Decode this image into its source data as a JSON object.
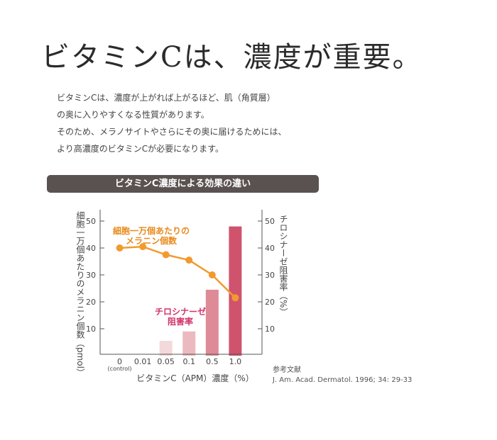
{
  "headline": "ビタミンCは、濃度が重要。",
  "paragraph_lines": [
    "ビタミンCは、濃度が上がれば上がるほど、肌（角質層）",
    "の奥に入りやすくなる性質があります。",
    "そのため、メラノサイトやさらにその奥に届けるためには、",
    "より高濃度のビタミンCが必要になります。"
  ],
  "chart_banner": "ビタミンC濃度による効果の違い",
  "reference": {
    "label": "参考文献",
    "citation": "J. Am. Acad. Dermatol. 1996; 34: 29-33"
  },
  "colors": {
    "line": "#f29a2e",
    "line_label": "#e88a1a",
    "bar_label": "#d2336b",
    "bars": [
      "#f3d9db",
      "#ebb9bf",
      "#de8b97",
      "#cf536d"
    ],
    "axis": "#555555",
    "banner": "#5a5250"
  },
  "chart_data": {
    "type": "bar+line",
    "categories": [
      "0",
      "0.01",
      "0.05",
      "0.1",
      "0.5",
      "1.0"
    ],
    "category_sublabel": {
      "index": 0,
      "text": "(control)"
    },
    "xlabel": "ビタミンC（APM）濃度（%）",
    "ylabel_left": "細胞一万個あたりのメラニン個数（pmol）",
    "ylabel_right": "チロシナーゼ阻害率（%）",
    "ylim": [
      0,
      55
    ],
    "yticks": [
      10,
      20,
      30,
      40,
      50
    ],
    "series": [
      {
        "name": "細胞一万個あたりのメラニン個数",
        "name_lines": [
          "細胞一万個あたりの",
          "メラニン個数"
        ],
        "type": "line",
        "axis": "left",
        "values": [
          40,
          40.5,
          37.5,
          35.5,
          30,
          21.5
        ]
      },
      {
        "name": "チロシナーゼ阻害率",
        "name_lines": [
          "チロシナーゼ",
          "阻害率"
        ],
        "type": "bar",
        "axis": "right",
        "values": [
          null,
          null,
          5.5,
          9,
          24.5,
          48
        ]
      }
    ],
    "legend": "inline annotations"
  }
}
